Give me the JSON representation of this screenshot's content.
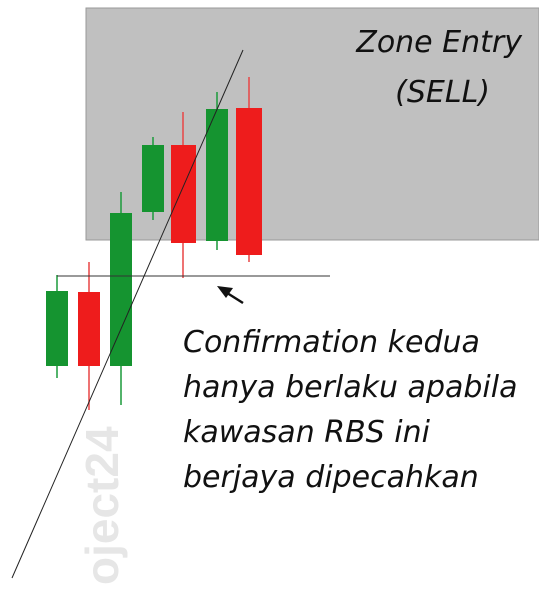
{
  "zone": {
    "title": "Zone Entry",
    "subtitle": "(SELL)"
  },
  "annotation": {
    "lines": [
      "Confirmation kedua",
      "hanya berlaku apabila",
      "kawasan RBS ini",
      "berjaya dipecahkan"
    ]
  },
  "watermark": "oject24"
}
